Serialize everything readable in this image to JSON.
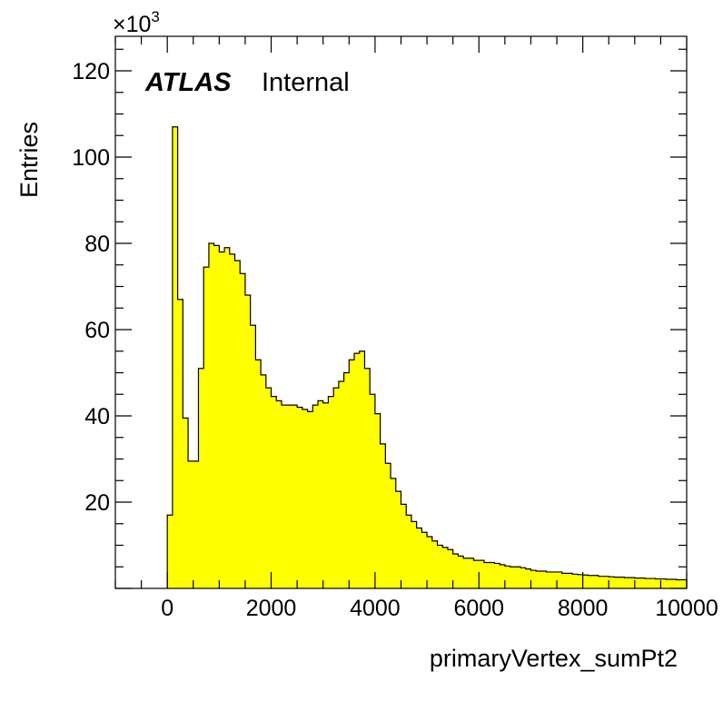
{
  "chart_data": {
    "type": "bar",
    "histogram": true,
    "xlabel": "primaryVertex_sumPt2",
    "ylabel": "Entries",
    "y_multiplier": "×10",
    "y_multiplier_exp": "3",
    "experiment_label": "ATLAS",
    "status_label": "Internal",
    "xlim": [
      -1000,
      10000
    ],
    "ylim": [
      0,
      128
    ],
    "bin_start": 0,
    "bin_width": 100,
    "fill_color": "#ffff00",
    "line_color": "#000000",
    "x_tick_labels": [
      "0",
      "2000",
      "4000",
      "6000",
      "8000",
      "10000"
    ],
    "x_ticks": [
      0,
      2000,
      4000,
      6000,
      8000,
      10000
    ],
    "y_tick_labels": [
      "20",
      "40",
      "60",
      "80",
      "100",
      "120"
    ],
    "y_ticks": [
      20,
      40,
      60,
      80,
      100,
      120
    ],
    "values": [
      17,
      107,
      67,
      39.5,
      29.5,
      29.5,
      51,
      74.5,
      80,
      79.5,
      78,
      79,
      77.5,
      76,
      73,
      68,
      61,
      53,
      49.5,
      46.5,
      44.5,
      43.5,
      42.5,
      42.5,
      42.5,
      42,
      41.5,
      41,
      42.5,
      43.5,
      43,
      44.5,
      46.5,
      48,
      50,
      53,
      54.5,
      55,
      51,
      45,
      40.5,
      33.5,
      29,
      25.5,
      22.5,
      19.5,
      17,
      15.5,
      14,
      13,
      12,
      11,
      10,
      9.5,
      9,
      8,
      7.5,
      7,
      7,
      6.5,
      6.5,
      6,
      6,
      5.8,
      5.5,
      5.2,
      5,
      5,
      4.8,
      4.5,
      4.2,
      4,
      4,
      3.8,
      3.8,
      3.8,
      3.5,
      3.5,
      3.3,
      3.2,
      3.1,
      3,
      3,
      2.8,
      2.8,
      2.7,
      2.6,
      2.6,
      2.5,
      2.5,
      2.4,
      2.4,
      2.3,
      2.3,
      2.2,
      2.2,
      2.1,
      2.1,
      2.0,
      2.0
    ]
  }
}
